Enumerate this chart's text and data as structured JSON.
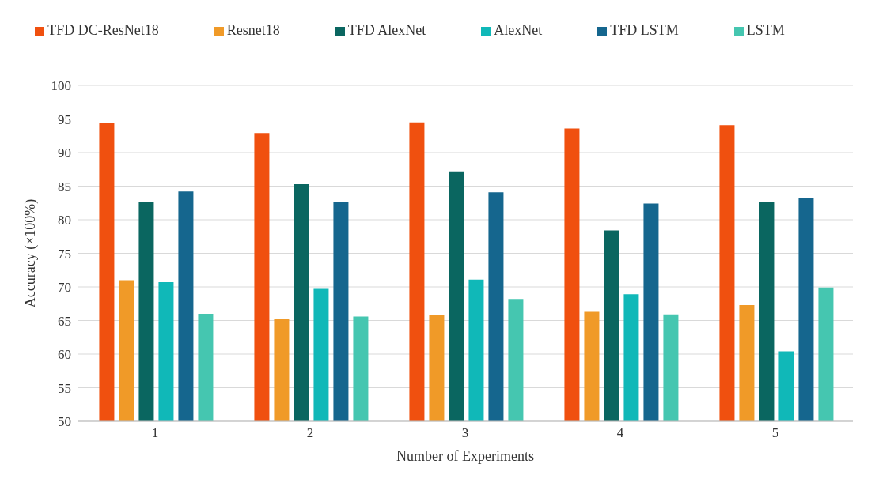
{
  "chart_data": {
    "type": "bar",
    "xlabel": "Number of Experiments",
    "ylabel": "Accuracy (×100%)",
    "categories": [
      "1",
      "2",
      "3",
      "4",
      "5"
    ],
    "series": [
      {
        "name": "TFD DC-ResNet18",
        "color": "#f0500f",
        "values": [
          94.4,
          92.9,
          94.5,
          93.6,
          94.1
        ]
      },
      {
        "name": "Resnet18",
        "color": "#f09a28",
        "values": [
          71.0,
          65.2,
          65.8,
          66.3,
          67.3
        ]
      },
      {
        "name": "TFD AlexNet",
        "color": "#0a6660",
        "values": [
          82.6,
          85.3,
          87.2,
          78.4,
          82.7
        ]
      },
      {
        "name": "AlexNet",
        "color": "#10b8b8",
        "values": [
          70.7,
          69.7,
          71.1,
          68.9,
          60.4
        ]
      },
      {
        "name": "TFD LSTM",
        "color": "#15668e",
        "values": [
          84.2,
          82.7,
          84.1,
          82.4,
          83.3
        ]
      },
      {
        "name": "LSTM",
        "color": "#45c6b0",
        "values": [
          66.0,
          65.6,
          68.2,
          65.9,
          69.9
        ]
      }
    ],
    "ylim": [
      50,
      100
    ],
    "yticks": [
      50,
      55,
      60,
      65,
      70,
      75,
      80,
      85,
      90,
      95,
      100
    ],
    "grid": "y",
    "legend": "top",
    "marker": "square"
  }
}
